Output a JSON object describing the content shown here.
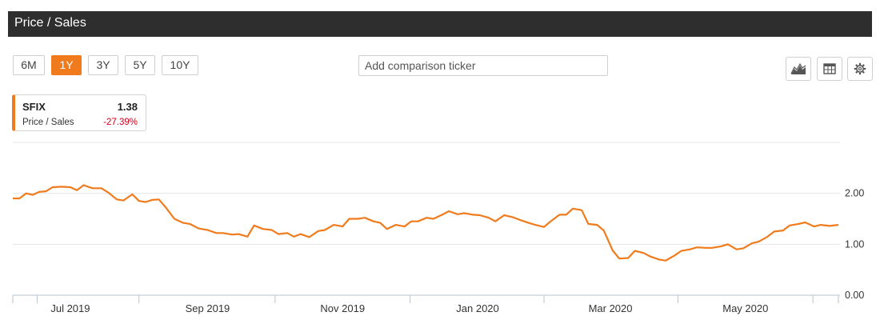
{
  "header": {
    "title": "Price / Sales"
  },
  "toolbar": {
    "ranges": [
      "6M",
      "1Y",
      "3Y",
      "5Y",
      "10Y"
    ],
    "active_range": "1Y",
    "compare_placeholder": "Add comparison ticker",
    "tools": [
      "area-chart-icon",
      "table-icon",
      "gear-icon"
    ]
  },
  "legend": {
    "ticker": "SFIX",
    "metric": "Price / Sales",
    "value": "1.38",
    "change": "-27.39%",
    "color": "#f07b1d",
    "change_color": "#d0021b"
  },
  "chart_data": {
    "type": "line",
    "title": "",
    "xlabel": "",
    "ylabel": "",
    "ylim": [
      0,
      3.0
    ],
    "yticks": [
      "0.00",
      "1.00",
      "2.00"
    ],
    "xticks": [
      {
        "date": "2019-07-01",
        "label": "Jul 2019"
      },
      {
        "date": "2019-09-01",
        "label": "Sep 2019"
      },
      {
        "date": "2019-11-01",
        "label": "Nov 2019"
      },
      {
        "date": "2020-01-01",
        "label": "Jan 2020"
      },
      {
        "date": "2020-03-01",
        "label": "Mar 2020"
      },
      {
        "date": "2020-05-01",
        "label": "May 2020"
      }
    ],
    "xlim": [
      "2019-06-05",
      "2020-06-12"
    ],
    "grid": "horizontal",
    "series": [
      {
        "name": "SFIX",
        "color": "#f07b1d",
        "x": [
          "2019-06-05",
          "2019-06-08",
          "2019-06-11",
          "2019-06-14",
          "2019-06-17",
          "2019-06-20",
          "2019-06-23",
          "2019-06-27",
          "2019-07-01",
          "2019-07-04",
          "2019-07-07",
          "2019-07-11",
          "2019-07-15",
          "2019-07-18",
          "2019-07-22",
          "2019-07-25",
          "2019-07-29",
          "2019-08-01",
          "2019-08-04",
          "2019-08-07",
          "2019-08-10",
          "2019-08-13",
          "2019-08-17",
          "2019-08-21",
          "2019-08-24",
          "2019-08-28",
          "2019-09-01",
          "2019-09-05",
          "2019-09-08",
          "2019-09-12",
          "2019-09-15",
          "2019-09-19",
          "2019-09-22",
          "2019-09-26",
          "2019-09-30",
          "2019-10-03",
          "2019-10-07",
          "2019-10-10",
          "2019-10-13",
          "2019-10-17",
          "2019-10-21",
          "2019-10-24",
          "2019-10-28",
          "2019-11-01",
          "2019-11-04",
          "2019-11-08",
          "2019-11-11",
          "2019-11-15",
          "2019-11-18",
          "2019-11-21",
          "2019-11-25",
          "2019-11-29",
          "2019-12-02",
          "2019-12-05",
          "2019-12-09",
          "2019-12-12",
          "2019-12-16",
          "2019-12-19",
          "2019-12-23",
          "2019-12-26",
          "2019-12-30",
          "2020-01-02",
          "2020-01-06",
          "2020-01-09",
          "2020-01-13",
          "2020-01-17",
          "2020-01-20",
          "2020-01-24",
          "2020-01-27",
          "2020-01-31",
          "2020-02-03",
          "2020-02-07",
          "2020-02-10",
          "2020-02-13",
          "2020-02-17",
          "2020-02-20",
          "2020-02-24",
          "2020-02-27",
          "2020-03-02",
          "2020-03-05",
          "2020-03-09",
          "2020-03-12",
          "2020-03-16",
          "2020-03-19",
          "2020-03-23",
          "2020-03-26",
          "2020-03-30",
          "2020-04-02",
          "2020-04-06",
          "2020-04-09",
          "2020-04-13",
          "2020-04-16",
          "2020-04-20",
          "2020-04-23",
          "2020-04-27",
          "2020-04-30",
          "2020-05-04",
          "2020-05-07",
          "2020-05-11",
          "2020-05-14",
          "2020-05-18",
          "2020-05-21",
          "2020-05-25",
          "2020-05-28",
          "2020-06-01",
          "2020-06-04",
          "2020-06-08",
          "2020-06-12"
        ],
        "values": [
          1.9,
          1.9,
          2.0,
          1.97,
          2.03,
          2.04,
          2.12,
          2.13,
          2.12,
          2.06,
          2.16,
          2.1,
          2.1,
          2.02,
          1.88,
          1.86,
          1.98,
          1.85,
          1.83,
          1.87,
          1.88,
          1.73,
          1.5,
          1.42,
          1.4,
          1.31,
          1.28,
          1.22,
          1.22,
          1.19,
          1.2,
          1.15,
          1.37,
          1.3,
          1.28,
          1.2,
          1.22,
          1.15,
          1.2,
          1.14,
          1.26,
          1.28,
          1.38,
          1.35,
          1.5,
          1.5,
          1.52,
          1.45,
          1.42,
          1.3,
          1.38,
          1.35,
          1.45,
          1.45,
          1.52,
          1.5,
          1.58,
          1.65,
          1.59,
          1.61,
          1.58,
          1.57,
          1.52,
          1.45,
          1.57,
          1.53,
          1.48,
          1.42,
          1.38,
          1.34,
          1.45,
          1.58,
          1.58,
          1.7,
          1.67,
          1.4,
          1.38,
          1.27,
          0.88,
          0.72,
          0.73,
          0.87,
          0.83,
          0.76,
          0.7,
          0.68,
          0.78,
          0.87,
          0.9,
          0.94,
          0.93,
          0.93,
          0.96,
          1.0,
          0.9,
          0.92,
          1.02,
          1.05,
          1.15,
          1.25,
          1.27,
          1.37,
          1.4,
          1.43,
          1.35,
          1.38,
          1.36,
          1.38
        ]
      }
    ]
  }
}
